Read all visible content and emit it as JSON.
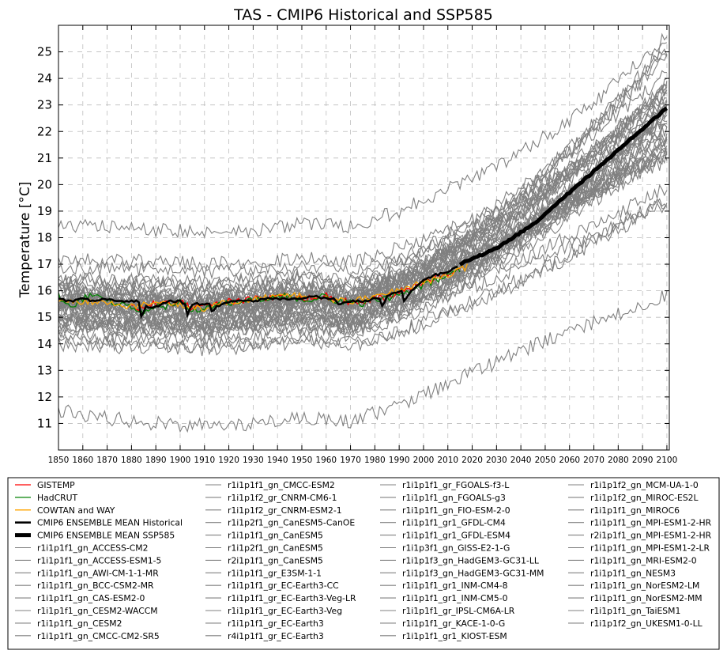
{
  "chart_data": {
    "type": "line",
    "title": "TAS - CMIP6 Historical and SSP585",
    "xlabel": "",
    "ylabel": "Temperature [°C]",
    "xlim": [
      1850,
      2101
    ],
    "ylim": [
      10,
      26
    ],
    "x_ticks": [
      1850,
      1860,
      1870,
      1880,
      1890,
      1900,
      1910,
      1920,
      1930,
      1940,
      1950,
      1960,
      1970,
      1980,
      1990,
      2000,
      2010,
      2020,
      2030,
      2040,
      2050,
      2060,
      2070,
      2080,
      2090,
      2100
    ],
    "y_ticks": [
      11,
      12,
      13,
      14,
      15,
      16,
      17,
      18,
      19,
      20,
      21,
      22,
      23,
      24,
      25
    ],
    "grid": true,
    "legend_position": "below",
    "colors": {
      "gistemp": "#ff0000",
      "hadcrut": "#008000",
      "cowtan": "#ffa500",
      "ensemble": "#000000",
      "model": "#808080"
    },
    "observations": [
      {
        "name": "GISTEMP",
        "color": "#ff0000",
        "x": [
          1880,
          1885,
          1890,
          1895,
          1900,
          1905,
          1910,
          1915,
          1920,
          1925,
          1930,
          1935,
          1940,
          1945,
          1950,
          1955,
          1960,
          1965,
          1970,
          1975,
          1980,
          1985,
          1990,
          1995,
          2000,
          2005,
          2010,
          2015
        ],
        "values": [
          15.5,
          15.3,
          15.6,
          15.5,
          15.6,
          15.3,
          15.4,
          15.5,
          15.6,
          15.6,
          15.7,
          15.7,
          15.8,
          15.8,
          15.7,
          15.7,
          15.8,
          15.6,
          15.6,
          15.5,
          15.8,
          15.7,
          16.0,
          16.1,
          16.3,
          16.5,
          16.6,
          16.9
        ]
      },
      {
        "name": "HadCRUT",
        "color": "#008000",
        "x": [
          1850,
          1855,
          1860,
          1865,
          1870,
          1875,
          1880,
          1885,
          1890,
          1895,
          1900,
          1905,
          1910,
          1915,
          1920,
          1925,
          1930,
          1935,
          1940,
          1945,
          1950,
          1955,
          1960,
          1965,
          1970,
          1975,
          1980,
          1985,
          1990,
          1995,
          2000,
          2005,
          2010,
          2015
        ],
        "values": [
          15.8,
          15.4,
          15.7,
          15.9,
          15.6,
          15.5,
          15.4,
          15.2,
          15.5,
          15.4,
          15.6,
          15.3,
          15.3,
          15.5,
          15.5,
          15.6,
          15.7,
          15.7,
          15.8,
          15.8,
          15.6,
          15.7,
          15.8,
          15.6,
          15.6,
          15.5,
          15.7,
          15.7,
          15.9,
          16.0,
          16.2,
          16.4,
          16.6,
          16.8
        ]
      },
      {
        "name": "COWTAN and WAY",
        "color": "#ffa500",
        "x": [
          1850,
          1860,
          1870,
          1880,
          1890,
          1900,
          1910,
          1920,
          1930,
          1940,
          1950,
          1960,
          1970,
          1980,
          1990,
          2000,
          2010,
          2018
        ],
        "values": [
          15.7,
          15.6,
          15.6,
          15.4,
          15.5,
          15.5,
          15.3,
          15.6,
          15.7,
          15.8,
          15.8,
          15.7,
          15.6,
          15.8,
          16.0,
          16.3,
          16.6,
          16.9
        ]
      }
    ],
    "ensemble_mean_historical": {
      "name": "CMIP6 ENSEMBLE MEAN Historical",
      "color": "#000000",
      "x": [
        1850,
        1855,
        1860,
        1865,
        1870,
        1875,
        1880,
        1883,
        1884,
        1886,
        1890,
        1895,
        1900,
        1902,
        1903,
        1905,
        1910,
        1912,
        1913,
        1915,
        1920,
        1925,
        1930,
        1935,
        1940,
        1945,
        1950,
        1955,
        1960,
        1963,
        1965,
        1970,
        1975,
        1980,
        1982,
        1983,
        1985,
        1990,
        1991,
        1992,
        1995,
        2000,
        2005,
        2010,
        2014
      ],
      "values": [
        15.7,
        15.6,
        15.7,
        15.6,
        15.7,
        15.6,
        15.6,
        15.6,
        15.0,
        15.4,
        15.4,
        15.6,
        15.6,
        15.5,
        15.1,
        15.5,
        15.5,
        15.5,
        15.2,
        15.4,
        15.6,
        15.6,
        15.6,
        15.7,
        15.7,
        15.7,
        15.7,
        15.8,
        15.7,
        15.7,
        15.5,
        15.6,
        15.6,
        15.7,
        15.7,
        15.4,
        15.8,
        16.0,
        16.0,
        15.6,
        16.0,
        16.4,
        16.6,
        16.7,
        16.9
      ]
    },
    "ensemble_mean_ssp585": {
      "name": "CMIP6 ENSEMBLE MEAN SSP585",
      "color": "#000000",
      "x": [
        2015,
        2020,
        2025,
        2030,
        2035,
        2040,
        2045,
        2050,
        2055,
        2060,
        2065,
        2070,
        2075,
        2080,
        2085,
        2090,
        2095,
        2100
      ],
      "values": [
        17.0,
        17.2,
        17.4,
        17.6,
        17.9,
        18.2,
        18.5,
        18.9,
        19.3,
        19.7,
        20.1,
        20.5,
        20.9,
        21.3,
        21.7,
        22.1,
        22.5,
        22.9
      ]
    },
    "model_runs": [
      "r1i1p1f1_gn_ACCESS-CM2",
      "r1i1p1f1_gn_ACCESS-ESM1-5",
      "r1i1p1f1_gn_AWI-CM-1-1-MR",
      "r1i1p1f1_gn_BCC-CSM2-MR",
      "r1i1p1f1_gn_CAS-ESM2-0",
      "r1i1p1f1_gn_CESM2-WACCM",
      "r1i1p1f1_gn_CESM2",
      "r1i1p1f1_gn_CMCC-CM2-SR5",
      "r1i1p1f1_gn_CMCC-ESM2",
      "r1i1p1f2_gr_CNRM-CM6-1",
      "r1i1p1f2_gr_CNRM-ESM2-1",
      "r1i1p2f1_gn_CanESM5-CanOE",
      "r1i1p1f1_gn_CanESM5",
      "r1i1p2f1_gn_CanESM5",
      "r2i1p1f1_gn_CanESM5",
      "r1i1p1f1_gr_E3SM-1-1",
      "r1i1p1f1_gr_EC-Earth3-CC",
      "r1i1p1f1_gr_EC-Earth3-Veg-LR",
      "r1i1p1f1_gr_EC-Earth3-Veg",
      "r1i1p1f1_gr_EC-Earth3",
      "r4i1p1f1_gr_EC-Earth3",
      "r1i1p1f1_gr_FGOALS-f3-L",
      "r1i1p1f1_gn_FGOALS-g3",
      "r1i1p1f1_gn_FIO-ESM-2-0",
      "r1i1p1f1_gr1_GFDL-CM4",
      "r1i1p1f1_gr1_GFDL-ESM4",
      "r1i1p3f1_gn_GISS-E2-1-G",
      "r1i1p1f3_gn_HadGEM3-GC31-LL",
      "r1i1p1f3_gn_HadGEM3-GC31-MM",
      "r1i1p1f1_gr1_INM-CM4-8",
      "r1i1p1f1_gr1_INM-CM5-0",
      "r1i1p1f1_gr_IPSL-CM6A-LR",
      "r1i1p1f1_gr_KACE-1-0-G",
      "r1i1p1f1_gr1_KIOST-ESM",
      "r1i1p1f2_gn_MCM-UA-1-0",
      "r1i1p1f2_gn_MIROC-ES2L",
      "r1i1p1f1_gn_MIROC6",
      "r1i1p1f1_gn_MPI-ESM1-2-HR",
      "r2i1p1f1_gn_MPI-ESM1-2-HR",
      "r1i1p1f1_gn_MPI-ESM1-2-LR",
      "r1i1p1f1_gn_MRI-ESM2-0",
      "r1i1p1f1_gn_NESM3",
      "r1i1p1f1_gn_NorESM2-LM",
      "r1i1p1f1_gn_NorESM2-MM",
      "r1i1p1f1_gn_TaiESM1",
      "r1i1p1f2_gn_UKESM1-0-LL"
    ],
    "model_run_x": [
      1850,
      1870,
      1890,
      1910,
      1930,
      1950,
      1970,
      1990,
      2010,
      2030,
      2050,
      2070,
      2090,
      2100
    ],
    "model_run_values": [
      [
        16.0,
        15.9,
        15.8,
        15.7,
        15.9,
        16.1,
        15.9,
        16.6,
        17.5,
        18.6,
        19.9,
        21.3,
        22.9,
        23.7
      ],
      [
        15.5,
        15.5,
        15.4,
        15.3,
        15.4,
        15.6,
        15.5,
        16.2,
        17.1,
        18.2,
        19.5,
        20.9,
        22.4,
        23.2
      ],
      [
        16.4,
        16.3,
        16.3,
        16.2,
        16.3,
        16.5,
        16.3,
        17.0,
        17.9,
        18.9,
        20.1,
        21.4,
        22.8,
        23.5
      ],
      [
        15.2,
        15.1,
        15.0,
        15.0,
        15.1,
        15.3,
        15.1,
        15.7,
        16.5,
        17.5,
        18.6,
        19.8,
        21.0,
        21.6
      ],
      [
        14.6,
        14.5,
        14.5,
        14.4,
        14.6,
        14.7,
        14.5,
        15.2,
        16.1,
        17.1,
        18.3,
        19.6,
        21.0,
        21.7
      ],
      [
        15.9,
        15.8,
        15.7,
        15.7,
        15.8,
        16.0,
        15.8,
        16.5,
        17.4,
        18.5,
        19.8,
        21.2,
        22.8,
        23.6
      ],
      [
        15.8,
        15.7,
        15.7,
        15.6,
        15.7,
        15.9,
        15.7,
        16.4,
        17.3,
        18.4,
        19.7,
        21.2,
        22.8,
        23.6
      ],
      [
        16.3,
        16.2,
        16.2,
        16.1,
        16.2,
        16.4,
        16.2,
        16.8,
        17.6,
        18.6,
        19.8,
        21.1,
        22.5,
        23.2
      ],
      [
        16.2,
        16.1,
        16.1,
        16.0,
        16.1,
        16.3,
        16.1,
        16.7,
        17.6,
        18.6,
        19.9,
        21.2,
        22.7,
        23.4
      ],
      [
        14.8,
        14.7,
        14.7,
        14.6,
        14.7,
        14.9,
        14.7,
        15.3,
        16.2,
        17.3,
        18.6,
        20.1,
        21.7,
        22.6
      ],
      [
        14.9,
        14.8,
        14.8,
        14.7,
        14.8,
        15.0,
        14.8,
        15.4,
        16.2,
        17.2,
        18.4,
        19.8,
        21.3,
        22.1
      ],
      [
        15.6,
        15.5,
        15.5,
        15.4,
        15.5,
        15.7,
        15.6,
        16.4,
        17.5,
        18.8,
        20.4,
        22.1,
        24.0,
        25.0
      ],
      [
        15.7,
        15.6,
        15.6,
        15.5,
        15.6,
        15.8,
        15.7,
        16.5,
        17.6,
        18.9,
        20.5,
        22.3,
        24.3,
        25.3
      ],
      [
        15.5,
        15.4,
        15.4,
        15.3,
        15.4,
        15.6,
        15.5,
        16.3,
        17.4,
        18.7,
        20.3,
        22.0,
        23.9,
        24.9
      ],
      [
        15.6,
        15.5,
        15.5,
        15.4,
        15.5,
        15.7,
        15.6,
        16.4,
        17.5,
        18.8,
        20.4,
        22.2,
        24.2,
        25.1
      ],
      [
        14.3,
        14.2,
        14.2,
        14.1,
        14.2,
        14.4,
        14.2,
        14.9,
        15.8,
        16.9,
        18.1,
        19.5,
        21.0,
        21.8
      ],
      [
        15.0,
        14.9,
        14.9,
        14.8,
        14.9,
        15.1,
        14.9,
        15.6,
        16.5,
        17.6,
        18.9,
        20.4,
        22.0,
        22.9
      ],
      [
        15.1,
        15.0,
        15.0,
        14.9,
        15.0,
        15.2,
        15.0,
        15.7,
        16.6,
        17.7,
        19.0,
        20.5,
        22.1,
        23.0
      ],
      [
        14.9,
        14.8,
        14.8,
        14.7,
        14.8,
        15.0,
        14.8,
        15.5,
        16.4,
        17.5,
        18.8,
        20.3,
        21.9,
        22.8
      ],
      [
        14.8,
        14.7,
        14.7,
        14.6,
        14.7,
        14.9,
        14.7,
        15.4,
        16.3,
        17.4,
        18.7,
        20.2,
        21.8,
        22.7
      ],
      [
        14.9,
        14.8,
        14.8,
        14.7,
        14.8,
        15.0,
        14.8,
        15.5,
        16.4,
        17.5,
        18.8,
        20.3,
        21.9,
        22.8
      ],
      [
        11.5,
        11.2,
        11.0,
        10.9,
        11.0,
        11.2,
        11.1,
        11.7,
        12.5,
        13.3,
        14.1,
        14.8,
        15.5,
        15.8
      ],
      [
        16.9,
        16.8,
        16.8,
        16.7,
        16.8,
        16.9,
        16.8,
        17.2,
        17.9,
        18.5,
        19.2,
        19.8,
        20.5,
        20.9
      ],
      [
        15.3,
        15.2,
        15.2,
        15.1,
        15.2,
        15.4,
        15.2,
        15.9,
        16.8,
        17.8,
        19.0,
        20.3,
        21.7,
        22.4
      ],
      [
        15.4,
        15.3,
        15.3,
        15.2,
        15.3,
        15.5,
        15.3,
        16.0,
        16.8,
        17.8,
        18.9,
        20.1,
        21.4,
        22.1
      ],
      [
        15.3,
        15.2,
        15.1,
        15.1,
        15.2,
        15.4,
        15.2,
        15.8,
        16.5,
        17.4,
        18.4,
        19.4,
        20.5,
        21.1
      ],
      [
        15.6,
        15.5,
        15.5,
        15.4,
        15.5,
        15.7,
        15.5,
        16.1,
        16.9,
        17.7,
        18.7,
        19.7,
        20.7,
        21.3
      ],
      [
        15.4,
        15.3,
        15.3,
        15.2,
        15.3,
        15.5,
        15.3,
        16.0,
        17.0,
        18.2,
        19.6,
        21.2,
        22.9,
        23.8
      ],
      [
        15.5,
        15.4,
        15.4,
        15.3,
        15.4,
        15.6,
        15.4,
        16.1,
        17.1,
        18.3,
        19.7,
        21.3,
        23.0,
        23.9
      ],
      [
        14.0,
        13.9,
        13.9,
        13.8,
        13.9,
        14.1,
        13.9,
        14.4,
        15.1,
        15.9,
        16.8,
        17.8,
        18.8,
        19.3
      ],
      [
        14.1,
        14.0,
        14.0,
        13.9,
        14.0,
        14.2,
        14.0,
        14.5,
        15.2,
        16.0,
        16.9,
        17.9,
        18.9,
        19.4
      ],
      [
        14.5,
        14.4,
        14.4,
        14.3,
        14.4,
        14.6,
        14.4,
        15.1,
        16.1,
        17.2,
        18.6,
        20.1,
        21.8,
        22.7
      ],
      [
        15.1,
        15.0,
        15.0,
        14.9,
        15.0,
        15.2,
        15.0,
        15.7,
        16.6,
        17.7,
        19.0,
        20.5,
        22.1,
        23.0
      ],
      [
        15.7,
        15.6,
        15.6,
        15.5,
        15.6,
        15.8,
        15.6,
        16.2,
        17.0,
        17.9,
        18.9,
        20.0,
        21.2,
        21.8
      ],
      [
        17.2,
        17.1,
        17.1,
        17.0,
        17.1,
        17.2,
        17.1,
        17.6,
        18.3,
        19.1,
        20.0,
        21.0,
        22.0,
        22.5
      ],
      [
        16.0,
        15.9,
        15.9,
        15.8,
        15.9,
        16.1,
        15.9,
        16.5,
        17.2,
        18.0,
        18.9,
        19.9,
        20.9,
        21.4
      ],
      [
        16.0,
        15.9,
        15.9,
        15.8,
        15.9,
        16.1,
        15.9,
        16.5,
        17.3,
        18.2,
        19.3,
        20.4,
        21.6,
        22.2
      ],
      [
        15.8,
        15.7,
        15.7,
        15.6,
        15.7,
        15.9,
        15.7,
        16.3,
        17.0,
        17.8,
        18.8,
        19.8,
        20.8,
        21.3
      ],
      [
        15.7,
        15.6,
        15.6,
        15.5,
        15.6,
        15.8,
        15.6,
        16.2,
        16.9,
        17.7,
        18.7,
        19.7,
        20.7,
        21.2
      ],
      [
        15.6,
        15.5,
        15.5,
        15.4,
        15.5,
        15.7,
        15.5,
        16.1,
        16.8,
        17.6,
        18.6,
        19.6,
        20.6,
        21.1
      ],
      [
        15.5,
        15.4,
        15.4,
        15.3,
        15.4,
        15.6,
        15.4,
        16.0,
        16.8,
        17.7,
        18.8,
        20.0,
        21.2,
        21.8
      ],
      [
        16.5,
        16.4,
        16.4,
        16.3,
        16.4,
        16.6,
        16.4,
        17.1,
        18.1,
        19.2,
        20.5,
        21.9,
        23.4,
        24.2
      ],
      [
        14.7,
        14.6,
        14.6,
        14.5,
        14.6,
        14.8,
        14.6,
        15.1,
        15.8,
        16.5,
        17.3,
        18.1,
        19.0,
        19.4
      ],
      [
        14.9,
        14.8,
        14.8,
        14.7,
        14.8,
        15.0,
        14.8,
        15.3,
        16.0,
        16.8,
        17.6,
        18.5,
        19.4,
        19.9
      ],
      [
        16.1,
        16.0,
        16.0,
        15.9,
        16.0,
        16.2,
        16.0,
        16.6,
        17.4,
        18.4,
        19.6,
        20.9,
        22.3,
        23.0
      ],
      [
        18.5,
        18.4,
        18.3,
        18.2,
        18.3,
        18.5,
        18.4,
        19.0,
        19.8,
        20.7,
        21.8,
        23.1,
        24.7,
        25.6
      ]
    ]
  }
}
